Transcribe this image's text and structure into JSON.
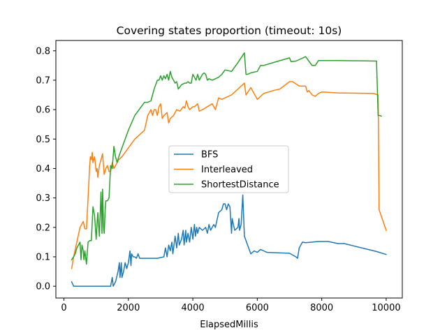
{
  "chart_data": {
    "type": "line",
    "title": "Covering states proportion (timeout: 10s)",
    "xlabel": "ElapsedMillis",
    "ylabel": "",
    "xlim": [
      -250,
      10500
    ],
    "ylim": [
      -0.04,
      0.835
    ],
    "xticks": [
      0,
      2000,
      4000,
      6000,
      8000,
      10000
    ],
    "xtick_labels": [
      "0",
      "2000",
      "4000",
      "6000",
      "8000",
      "10000"
    ],
    "yticks": [
      0.0,
      0.1,
      0.2,
      0.3,
      0.4,
      0.5,
      0.6,
      0.7,
      0.8
    ],
    "ytick_labels": [
      "0.0",
      "0.1",
      "0.2",
      "0.3",
      "0.4",
      "0.5",
      "0.6",
      "0.7",
      "0.8"
    ],
    "grid": false,
    "legend_position": "center",
    "series": [
      {
        "name": "BFS",
        "color": "#1f77b4",
        "points": [
          [
            240,
            0.015
          ],
          [
            300,
            0.0
          ],
          [
            800,
            0.0
          ],
          [
            1300,
            0.0
          ],
          [
            1450,
            0.0
          ],
          [
            1500,
            0.03
          ],
          [
            1530,
            0.0
          ],
          [
            1600,
            0.015
          ],
          [
            1680,
            0.05
          ],
          [
            1720,
            0.08
          ],
          [
            1740,
            0.03
          ],
          [
            1780,
            0.08
          ],
          [
            1800,
            0.03
          ],
          [
            1850,
            0.05
          ],
          [
            1900,
            0.08
          ],
          [
            1950,
            0.06
          ],
          [
            2000,
            0.08
          ],
          [
            2050,
            0.12
          ],
          [
            2080,
            0.07
          ],
          [
            2100,
            0.11
          ],
          [
            2150,
            0.1
          ],
          [
            2200,
            0.1
          ],
          [
            2250,
            0.095
          ],
          [
            2300,
            0.11
          ],
          [
            2350,
            0.095
          ],
          [
            2900,
            0.095
          ],
          [
            3100,
            0.1
          ],
          [
            3150,
            0.13
          ],
          [
            3200,
            0.1
          ],
          [
            3250,
            0.14
          ],
          [
            3300,
            0.12
          ],
          [
            3350,
            0.15
          ],
          [
            3380,
            0.11
          ],
          [
            3450,
            0.17
          ],
          [
            3500,
            0.13
          ],
          [
            3550,
            0.18
          ],
          [
            3580,
            0.14
          ],
          [
            3650,
            0.16
          ],
          [
            3700,
            0.19
          ],
          [
            3730,
            0.14
          ],
          [
            3780,
            0.19
          ],
          [
            3800,
            0.15
          ],
          [
            3850,
            0.18
          ],
          [
            3900,
            0.15
          ],
          [
            3950,
            0.2
          ],
          [
            4000,
            0.16
          ],
          [
            4050,
            0.21
          ],
          [
            4080,
            0.17
          ],
          [
            4120,
            0.2
          ],
          [
            4150,
            0.18
          ],
          [
            4200,
            0.2
          ],
          [
            4300,
            0.19
          ],
          [
            4400,
            0.2
          ],
          [
            4450,
            0.18
          ],
          [
            4500,
            0.21
          ],
          [
            4550,
            0.19
          ],
          [
            4650,
            0.21
          ],
          [
            4700,
            0.2
          ],
          [
            4800,
            0.25
          ],
          [
            4900,
            0.26
          ],
          [
            4950,
            0.28
          ],
          [
            5000,
            0.28
          ],
          [
            5050,
            0.26
          ],
          [
            5100,
            0.28
          ],
          [
            5150,
            0.27
          ],
          [
            5200,
            0.18
          ],
          [
            5220,
            0.23
          ],
          [
            5260,
            0.21
          ],
          [
            5300,
            0.19
          ],
          [
            5400,
            0.2
          ],
          [
            5430,
            0.23
          ],
          [
            5450,
            0.19
          ],
          [
            5500,
            0.21
          ],
          [
            5550,
            0.31
          ],
          [
            5600,
            0.17
          ],
          [
            5700,
            0.14
          ],
          [
            5800,
            0.11
          ],
          [
            5900,
            0.12
          ],
          [
            6000,
            0.115
          ],
          [
            6100,
            0.125
          ],
          [
            6200,
            0.12
          ],
          [
            6300,
            0.115
          ],
          [
            7000,
            0.112
          ],
          [
            7200,
            0.1
          ],
          [
            7250,
            0.095
          ],
          [
            7300,
            0.13
          ],
          [
            7400,
            0.15
          ],
          [
            7500,
            0.148
          ],
          [
            7700,
            0.15
          ],
          [
            7900,
            0.152
          ],
          [
            8200,
            0.152
          ],
          [
            8500,
            0.145
          ],
          [
            8700,
            0.145
          ],
          [
            9700,
            0.118
          ],
          [
            10000,
            0.108
          ]
        ]
      },
      {
        "name": "Interleaved",
        "color": "#ff7f0e",
        "points": [
          [
            240,
            0.06
          ],
          [
            300,
            0.1
          ],
          [
            400,
            0.15
          ],
          [
            500,
            0.2
          ],
          [
            550,
            0.21
          ],
          [
            600,
            0.22
          ],
          [
            650,
            0.195
          ],
          [
            700,
            0.195
          ],
          [
            750,
            0.3
          ],
          [
            800,
            0.41
          ],
          [
            820,
            0.44
          ],
          [
            850,
            0.43
          ],
          [
            880,
            0.455
          ],
          [
            900,
            0.42
          ],
          [
            950,
            0.44
          ],
          [
            1000,
            0.39
          ],
          [
            1030,
            0.4
          ],
          [
            1050,
            0.37
          ],
          [
            1100,
            0.41
          ],
          [
            1150,
            0.43
          ],
          [
            1200,
            0.45
          ],
          [
            1250,
            0.38
          ],
          [
            1300,
            0.4
          ],
          [
            1350,
            0.41
          ],
          [
            1400,
            0.39
          ],
          [
            1450,
            0.39
          ],
          [
            1500,
            0.42
          ],
          [
            1550,
            0.4
          ],
          [
            1600,
            0.41
          ],
          [
            1700,
            0.43
          ],
          [
            1800,
            0.44
          ],
          [
            2000,
            0.47
          ],
          [
            2200,
            0.5
          ],
          [
            2500,
            0.53
          ],
          [
            2600,
            0.58
          ],
          [
            2650,
            0.59
          ],
          [
            2700,
            0.6
          ],
          [
            2750,
            0.58
          ],
          [
            2800,
            0.6
          ],
          [
            2850,
            0.6
          ],
          [
            2900,
            0.58
          ],
          [
            2950,
            0.61
          ],
          [
            3000,
            0.62
          ],
          [
            3050,
            0.57
          ],
          [
            3100,
            0.58
          ],
          [
            3200,
            0.59
          ],
          [
            3250,
            0.555
          ],
          [
            3300,
            0.57
          ],
          [
            3400,
            0.58
          ],
          [
            3500,
            0.6
          ],
          [
            3600,
            0.595
          ],
          [
            3700,
            0.61
          ],
          [
            3750,
            0.605
          ],
          [
            3800,
            0.63
          ],
          [
            3850,
            0.61
          ],
          [
            3900,
            0.6
          ],
          [
            4000,
            0.61
          ],
          [
            4050,
            0.61
          ],
          [
            4150,
            0.62
          ],
          [
            4200,
            0.595
          ],
          [
            4300,
            0.6
          ],
          [
            4600,
            0.62
          ],
          [
            4700,
            0.6
          ],
          [
            4800,
            0.64
          ],
          [
            4900,
            0.635
          ],
          [
            5200,
            0.65
          ],
          [
            5300,
            0.66
          ],
          [
            5600,
            0.69
          ],
          [
            5650,
            0.65
          ],
          [
            5800,
            0.675
          ],
          [
            6000,
            0.635
          ],
          [
            6200,
            0.655
          ],
          [
            6500,
            0.665
          ],
          [
            6700,
            0.67
          ],
          [
            7000,
            0.695
          ],
          [
            7100,
            0.695
          ],
          [
            7300,
            0.68
          ],
          [
            7500,
            0.68
          ],
          [
            7550,
            0.66
          ],
          [
            7600,
            0.665
          ],
          [
            7700,
            0.65
          ],
          [
            7800,
            0.645
          ],
          [
            7900,
            0.655
          ],
          [
            8000,
            0.66
          ],
          [
            8500,
            0.657
          ],
          [
            9600,
            0.655
          ],
          [
            9750,
            0.65
          ],
          [
            9780,
            0.26
          ],
          [
            10000,
            0.19
          ]
        ]
      },
      {
        "name": "ShortestDistance",
        "color": "#2ca02c",
        "points": [
          [
            240,
            0.09
          ],
          [
            300,
            0.1
          ],
          [
            350,
            0.11
          ],
          [
            400,
            0.13
          ],
          [
            450,
            0.14
          ],
          [
            500,
            0.15
          ],
          [
            530,
            0.09
          ],
          [
            560,
            0.14
          ],
          [
            600,
            0.12
          ],
          [
            620,
            0.09
          ],
          [
            650,
            0.12
          ],
          [
            700,
            0.075
          ],
          [
            750,
            0.15
          ],
          [
            800,
            0.155
          ],
          [
            850,
            0.155
          ],
          [
            900,
            0.27
          ],
          [
            950,
            0.24
          ],
          [
            1000,
            0.16
          ],
          [
            1050,
            0.25
          ],
          [
            1100,
            0.17
          ],
          [
            1150,
            0.32
          ],
          [
            1180,
            0.18
          ],
          [
            1200,
            0.33
          ],
          [
            1230,
            0.2
          ],
          [
            1250,
            0.18
          ],
          [
            1280,
            0.26
          ],
          [
            1300,
            0.29
          ],
          [
            1350,
            0.29
          ],
          [
            1400,
            0.3
          ],
          [
            1450,
            0.41
          ],
          [
            1500,
            0.4
          ],
          [
            1550,
            0.475
          ],
          [
            1600,
            0.44
          ],
          [
            1650,
            0.42
          ],
          [
            1700,
            0.44
          ],
          [
            1800,
            0.47
          ],
          [
            1900,
            0.5
          ],
          [
            2000,
            0.53
          ],
          [
            2200,
            0.58
          ],
          [
            2500,
            0.625
          ],
          [
            2600,
            0.625
          ],
          [
            2700,
            0.63
          ],
          [
            2800,
            0.67
          ],
          [
            2900,
            0.7
          ],
          [
            2950,
            0.7
          ],
          [
            3000,
            0.715
          ],
          [
            3050,
            0.7
          ],
          [
            3100,
            0.715
          ],
          [
            3150,
            0.705
          ],
          [
            3200,
            0.72
          ],
          [
            3250,
            0.7
          ],
          [
            3300,
            0.73
          ],
          [
            3350,
            0.71
          ],
          [
            3400,
            0.7
          ],
          [
            3450,
            0.69
          ],
          [
            3500,
            0.695
          ],
          [
            3550,
            0.67
          ],
          [
            3650,
            0.685
          ],
          [
            3750,
            0.69
          ],
          [
            3800,
            0.69
          ],
          [
            3850,
            0.695
          ],
          [
            3900,
            0.69
          ],
          [
            3950,
            0.69
          ],
          [
            4000,
            0.72
          ],
          [
            4050,
            0.71
          ],
          [
            4100,
            0.7
          ],
          [
            4150,
            0.72
          ],
          [
            4200,
            0.7
          ],
          [
            4300,
            0.72
          ],
          [
            4350,
            0.725
          ],
          [
            4400,
            0.72
          ],
          [
            4450,
            0.7
          ],
          [
            4500,
            0.705
          ],
          [
            4600,
            0.7
          ],
          [
            4800,
            0.71
          ],
          [
            4900,
            0.72
          ],
          [
            5000,
            0.735
          ],
          [
            5200,
            0.73
          ],
          [
            5300,
            0.745
          ],
          [
            5400,
            0.76
          ],
          [
            5600,
            0.793
          ],
          [
            5650,
            0.72
          ],
          [
            5700,
            0.72
          ],
          [
            5800,
            0.725
          ],
          [
            6000,
            0.73
          ],
          [
            6100,
            0.75
          ],
          [
            6200,
            0.75
          ],
          [
            6500,
            0.76
          ],
          [
            7000,
            0.776
          ],
          [
            7050,
            0.763
          ],
          [
            7200,
            0.765
          ],
          [
            7400,
            0.775
          ],
          [
            7500,
            0.78
          ],
          [
            7600,
            0.765
          ],
          [
            7700,
            0.75
          ],
          [
            7800,
            0.75
          ],
          [
            7900,
            0.767
          ],
          [
            8500,
            0.767
          ],
          [
            9700,
            0.765
          ],
          [
            9750,
            0.58
          ],
          [
            9800,
            0.58
          ],
          [
            9850,
            0.578
          ]
        ]
      }
    ]
  }
}
